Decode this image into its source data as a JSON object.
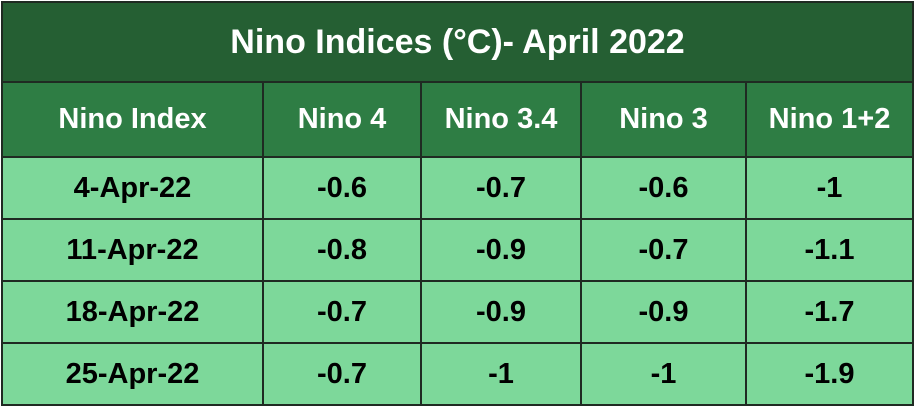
{
  "table": {
    "title": "Nino Indices (°C)- April 2022",
    "header": [
      "Nino Index",
      "Nino 4",
      "Nino 3.4",
      "Nino 3",
      "Nino 1+2"
    ],
    "rows": [
      [
        "4-Apr-22",
        "-0.6",
        "-0.7",
        "-0.6",
        "-1"
      ],
      [
        "11-Apr-22",
        "-0.8",
        "-0.9",
        "-0.7",
        "-1.1"
      ],
      [
        "18-Apr-22",
        "-0.7",
        "-0.9",
        "-0.9",
        "-1.7"
      ],
      [
        "25-Apr-22",
        "-0.7",
        "-1",
        "-1",
        "-1.9"
      ]
    ]
  }
}
